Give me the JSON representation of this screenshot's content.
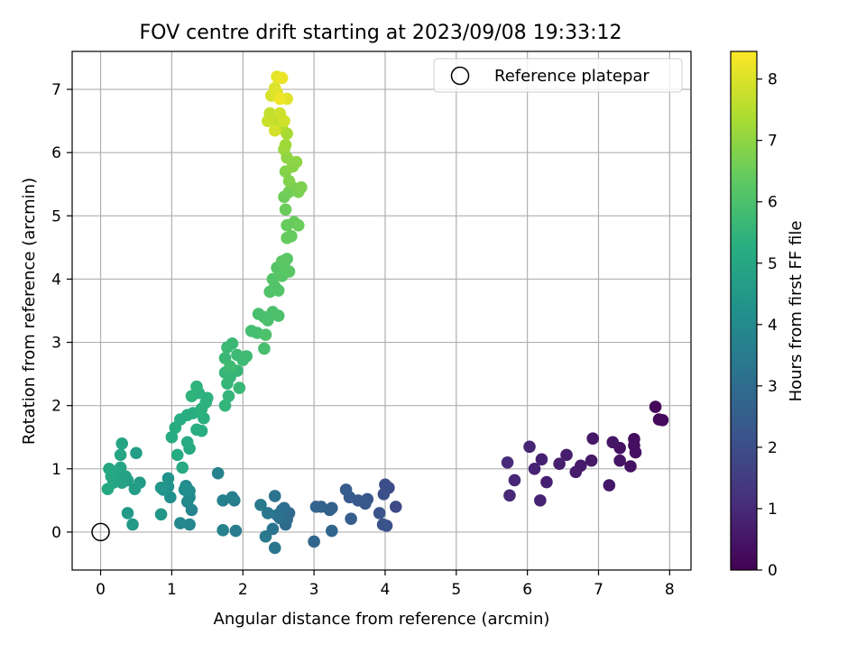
{
  "chart_data": {
    "type": "scatter",
    "title": "FOV centre drift starting at 2023/09/08 19:33:12",
    "xlabel": "Angular distance from reference (arcmin)",
    "ylabel": "Rotation from reference (arcmin)",
    "xlim": [
      -0.4,
      8.3
    ],
    "ylim": [
      -0.6,
      7.6
    ],
    "xticks": [
      0,
      1,
      2,
      3,
      4,
      5,
      6,
      7,
      8
    ],
    "yticks": [
      0,
      1,
      2,
      3,
      4,
      5,
      6,
      7
    ],
    "grid": true,
    "legend": {
      "position": "top-right",
      "entries": [
        "Reference platepar"
      ]
    },
    "reference_point": {
      "x": 0,
      "y": 0
    },
    "colorbar": {
      "label": "Hours from first FF file",
      "min": 0,
      "max": 8.45,
      "ticks": [
        0,
        1,
        2,
        3,
        4,
        5,
        6,
        7,
        8
      ],
      "colormap": "viridis"
    },
    "points": [
      {
        "x": 7.8,
        "y": 1.98,
        "c": 0.15
      },
      {
        "x": 7.85,
        "y": 1.78,
        "c": 0.2
      },
      {
        "x": 7.9,
        "y": 1.77,
        "c": 0.22
      },
      {
        "x": 7.5,
        "y": 1.47,
        "c": 0.3
      },
      {
        "x": 7.5,
        "y": 1.37,
        "c": 0.32
      },
      {
        "x": 7.52,
        "y": 1.26,
        "c": 0.35
      },
      {
        "x": 7.45,
        "y": 1.04,
        "c": 0.38
      },
      {
        "x": 7.3,
        "y": 1.33,
        "c": 0.42
      },
      {
        "x": 7.3,
        "y": 1.13,
        "c": 0.45
      },
      {
        "x": 7.2,
        "y": 1.42,
        "c": 0.48
      },
      {
        "x": 7.15,
        "y": 0.74,
        "c": 0.52
      },
      {
        "x": 6.92,
        "y": 1.48,
        "c": 0.55
      },
      {
        "x": 6.9,
        "y": 1.13,
        "c": 0.58
      },
      {
        "x": 6.75,
        "y": 1.05,
        "c": 0.62
      },
      {
        "x": 6.68,
        "y": 0.95,
        "c": 0.65
      },
      {
        "x": 6.55,
        "y": 1.22,
        "c": 0.68
      },
      {
        "x": 6.45,
        "y": 1.08,
        "c": 0.72
      },
      {
        "x": 6.27,
        "y": 0.79,
        "c": 0.75
      },
      {
        "x": 6.2,
        "y": 1.15,
        "c": 0.78
      },
      {
        "x": 6.18,
        "y": 0.5,
        "c": 0.82
      },
      {
        "x": 6.1,
        "y": 1.0,
        "c": 0.85
      },
      {
        "x": 6.03,
        "y": 1.35,
        "c": 0.88
      },
      {
        "x": 5.82,
        "y": 0.82,
        "c": 0.92
      },
      {
        "x": 5.75,
        "y": 0.58,
        "c": 0.95
      },
      {
        "x": 5.72,
        "y": 1.1,
        "c": 0.98
      },
      {
        "x": 4.15,
        "y": 0.4,
        "c": 1.9
      },
      {
        "x": 4.05,
        "y": 0.7,
        "c": 1.95
      },
      {
        "x": 4.0,
        "y": 0.75,
        "c": 2.0
      },
      {
        "x": 3.98,
        "y": 0.6,
        "c": 2.05
      },
      {
        "x": 4.02,
        "y": 0.1,
        "c": 2.1
      },
      {
        "x": 3.97,
        "y": 0.12,
        "c": 2.15
      },
      {
        "x": 3.92,
        "y": 0.3,
        "c": 2.2
      },
      {
        "x": 3.75,
        "y": 0.52,
        "c": 2.25
      },
      {
        "x": 3.72,
        "y": 0.45,
        "c": 2.3
      },
      {
        "x": 3.62,
        "y": 0.5,
        "c": 2.35
      },
      {
        "x": 3.5,
        "y": 0.55,
        "c": 2.4
      },
      {
        "x": 3.45,
        "y": 0.67,
        "c": 2.45
      },
      {
        "x": 3.52,
        "y": 0.21,
        "c": 2.5
      },
      {
        "x": 3.25,
        "y": 0.38,
        "c": 2.55
      },
      {
        "x": 3.22,
        "y": 0.35,
        "c": 2.6
      },
      {
        "x": 3.1,
        "y": 0.4,
        "c": 2.65
      },
      {
        "x": 3.03,
        "y": 0.4,
        "c": 2.7
      },
      {
        "x": 3.25,
        "y": 0.02,
        "c": 2.75
      },
      {
        "x": 3.0,
        "y": -0.15,
        "c": 2.8
      },
      {
        "x": 2.65,
        "y": 0.3,
        "c": 2.85
      },
      {
        "x": 2.62,
        "y": 0.2,
        "c": 2.9
      },
      {
        "x": 2.6,
        "y": 0.12,
        "c": 2.95
      },
      {
        "x": 2.58,
        "y": 0.38,
        "c": 3.0
      },
      {
        "x": 2.55,
        "y": 0.35,
        "c": 3.05
      },
      {
        "x": 2.52,
        "y": 0.22,
        "c": 3.1
      },
      {
        "x": 2.48,
        "y": 0.27,
        "c": 3.15
      },
      {
        "x": 2.45,
        "y": 0.57,
        "c": 3.2
      },
      {
        "x": 2.42,
        "y": 0.05,
        "c": 3.25
      },
      {
        "x": 2.45,
        "y": -0.25,
        "c": 3.3
      },
      {
        "x": 2.35,
        "y": 0.3,
        "c": 3.35
      },
      {
        "x": 2.32,
        "y": -0.07,
        "c": 3.4
      },
      {
        "x": 2.25,
        "y": 0.43,
        "c": 3.45
      },
      {
        "x": 1.9,
        "y": 0.02,
        "c": 3.5
      },
      {
        "x": 1.88,
        "y": 0.5,
        "c": 3.55
      },
      {
        "x": 1.85,
        "y": 0.55,
        "c": 3.6
      },
      {
        "x": 1.72,
        "y": 0.5,
        "c": 3.65
      },
      {
        "x": 1.72,
        "y": 0.03,
        "c": 3.7
      },
      {
        "x": 1.65,
        "y": 0.93,
        "c": 3.75
      },
      {
        "x": 1.28,
        "y": 0.35,
        "c": 3.8
      },
      {
        "x": 1.25,
        "y": 0.12,
        "c": 3.85
      },
      {
        "x": 1.22,
        "y": 0.48,
        "c": 3.9
      },
      {
        "x": 1.12,
        "y": 0.14,
        "c": 3.95
      },
      {
        "x": 1.25,
        "y": 0.55,
        "c": 4.0
      },
      {
        "x": 1.2,
        "y": 0.73,
        "c": 4.05
      },
      {
        "x": 1.25,
        "y": 0.65,
        "c": 4.1
      },
      {
        "x": 1.18,
        "y": 0.67,
        "c": 4.15
      },
      {
        "x": 0.98,
        "y": 0.55,
        "c": 4.2
      },
      {
        "x": 0.95,
        "y": 0.72,
        "c": 4.25
      },
      {
        "x": 0.95,
        "y": 0.85,
        "c": 4.3
      },
      {
        "x": 0.88,
        "y": 0.67,
        "c": 4.35
      },
      {
        "x": 0.85,
        "y": 0.7,
        "c": 4.4
      },
      {
        "x": 0.85,
        "y": 0.28,
        "c": 4.45
      },
      {
        "x": 0.45,
        "y": 0.12,
        "c": 4.5
      },
      {
        "x": 0.38,
        "y": 0.3,
        "c": 4.55
      },
      {
        "x": 0.55,
        "y": 0.78,
        "c": 4.6
      },
      {
        "x": 0.48,
        "y": 0.68,
        "c": 4.65
      },
      {
        "x": 0.5,
        "y": 1.25,
        "c": 4.7
      },
      {
        "x": 0.38,
        "y": 0.82,
        "c": 4.75
      },
      {
        "x": 0.35,
        "y": 0.88,
        "c": 4.8
      },
      {
        "x": 0.3,
        "y": 0.78,
        "c": 4.82
      },
      {
        "x": 0.28,
        "y": 0.92,
        "c": 4.85
      },
      {
        "x": 0.28,
        "y": 1.02,
        "c": 4.88
      },
      {
        "x": 0.3,
        "y": 1.4,
        "c": 4.9
      },
      {
        "x": 0.28,
        "y": 1.22,
        "c": 4.92
      },
      {
        "x": 0.22,
        "y": 0.95,
        "c": 4.95
      },
      {
        "x": 0.18,
        "y": 0.78,
        "c": 4.98
      },
      {
        "x": 0.15,
        "y": 0.88,
        "c": 5.0
      },
      {
        "x": 0.12,
        "y": 1.0,
        "c": 5.02
      },
      {
        "x": 0.1,
        "y": 0.68,
        "c": 5.05
      },
      {
        "x": 1.15,
        "y": 1.02,
        "c": 5.1
      },
      {
        "x": 1.25,
        "y": 1.32,
        "c": 5.12
      },
      {
        "x": 1.22,
        "y": 1.42,
        "c": 5.14
      },
      {
        "x": 1.08,
        "y": 1.22,
        "c": 5.16
      },
      {
        "x": 1.0,
        "y": 1.5,
        "c": 5.18
      },
      {
        "x": 1.05,
        "y": 1.65,
        "c": 5.2
      },
      {
        "x": 1.12,
        "y": 1.78,
        "c": 5.22
      },
      {
        "x": 1.22,
        "y": 1.85,
        "c": 5.24
      },
      {
        "x": 1.3,
        "y": 1.88,
        "c": 5.26
      },
      {
        "x": 1.35,
        "y": 1.62,
        "c": 5.28
      },
      {
        "x": 1.42,
        "y": 1.6,
        "c": 5.3
      },
      {
        "x": 1.45,
        "y": 1.8,
        "c": 5.32
      },
      {
        "x": 1.42,
        "y": 1.95,
        "c": 5.34
      },
      {
        "x": 1.48,
        "y": 2.05,
        "c": 5.36
      },
      {
        "x": 1.5,
        "y": 2.12,
        "c": 5.38
      },
      {
        "x": 1.38,
        "y": 2.2,
        "c": 5.4
      },
      {
        "x": 1.35,
        "y": 2.3,
        "c": 5.42
      },
      {
        "x": 1.28,
        "y": 2.15,
        "c": 5.44
      },
      {
        "x": 1.75,
        "y": 2.0,
        "c": 5.5
      },
      {
        "x": 1.8,
        "y": 2.15,
        "c": 5.52
      },
      {
        "x": 1.78,
        "y": 2.35,
        "c": 5.54
      },
      {
        "x": 1.82,
        "y": 2.45,
        "c": 5.56
      },
      {
        "x": 1.75,
        "y": 2.52,
        "c": 5.58
      },
      {
        "x": 1.92,
        "y": 2.55,
        "c": 5.6
      },
      {
        "x": 1.95,
        "y": 2.28,
        "c": 5.62
      },
      {
        "x": 1.75,
        "y": 2.75,
        "c": 5.64
      },
      {
        "x": 1.78,
        "y": 2.92,
        "c": 5.66
      },
      {
        "x": 1.85,
        "y": 2.98,
        "c": 5.68
      },
      {
        "x": 1.92,
        "y": 2.8,
        "c": 5.7
      },
      {
        "x": 2.0,
        "y": 2.72,
        "c": 5.72
      },
      {
        "x": 2.05,
        "y": 2.78,
        "c": 5.74
      },
      {
        "x": 1.82,
        "y": 2.62,
        "c": 5.76
      },
      {
        "x": 2.12,
        "y": 3.18,
        "c": 5.85
      },
      {
        "x": 2.2,
        "y": 3.15,
        "c": 5.88
      },
      {
        "x": 2.3,
        "y": 2.9,
        "c": 5.9
      },
      {
        "x": 2.22,
        "y": 3.45,
        "c": 5.92
      },
      {
        "x": 2.3,
        "y": 3.4,
        "c": 5.94
      },
      {
        "x": 2.35,
        "y": 3.35,
        "c": 5.96
      },
      {
        "x": 2.42,
        "y": 3.48,
        "c": 5.98
      },
      {
        "x": 2.5,
        "y": 3.42,
        "c": 6.0
      },
      {
        "x": 2.32,
        "y": 3.12,
        "c": 6.02
      },
      {
        "x": 2.38,
        "y": 3.8,
        "c": 6.08
      },
      {
        "x": 2.45,
        "y": 3.88,
        "c": 6.1
      },
      {
        "x": 2.5,
        "y": 3.82,
        "c": 6.12
      },
      {
        "x": 2.42,
        "y": 4.0,
        "c": 6.14
      },
      {
        "x": 2.48,
        "y": 4.18,
        "c": 6.16
      },
      {
        "x": 2.55,
        "y": 4.05,
        "c": 6.18
      },
      {
        "x": 2.58,
        "y": 4.2,
        "c": 6.2
      },
      {
        "x": 2.62,
        "y": 4.32,
        "c": 6.22
      },
      {
        "x": 2.65,
        "y": 4.12,
        "c": 6.24
      },
      {
        "x": 2.55,
        "y": 4.28,
        "c": 6.26
      },
      {
        "x": 2.62,
        "y": 4.65,
        "c": 6.4
      },
      {
        "x": 2.68,
        "y": 4.68,
        "c": 6.42
      },
      {
        "x": 2.62,
        "y": 4.85,
        "c": 6.44
      },
      {
        "x": 2.72,
        "y": 4.9,
        "c": 6.46
      },
      {
        "x": 2.78,
        "y": 4.85,
        "c": 6.48
      },
      {
        "x": 2.6,
        "y": 5.1,
        "c": 6.5
      },
      {
        "x": 2.58,
        "y": 5.3,
        "c": 6.55
      },
      {
        "x": 2.65,
        "y": 5.38,
        "c": 6.6
      },
      {
        "x": 2.7,
        "y": 5.45,
        "c": 6.65
      },
      {
        "x": 2.78,
        "y": 5.38,
        "c": 6.7
      },
      {
        "x": 2.82,
        "y": 5.45,
        "c": 6.75
      },
      {
        "x": 2.65,
        "y": 5.55,
        "c": 6.8
      },
      {
        "x": 2.6,
        "y": 5.7,
        "c": 6.85
      },
      {
        "x": 2.7,
        "y": 5.78,
        "c": 6.9
      },
      {
        "x": 2.75,
        "y": 5.85,
        "c": 6.95
      },
      {
        "x": 2.62,
        "y": 5.92,
        "c": 7.0
      },
      {
        "x": 2.58,
        "y": 6.05,
        "c": 7.1
      },
      {
        "x": 2.6,
        "y": 6.12,
        "c": 7.2
      },
      {
        "x": 2.62,
        "y": 6.3,
        "c": 7.3
      },
      {
        "x": 2.55,
        "y": 6.38,
        "c": 7.4
      },
      {
        "x": 2.5,
        "y": 6.42,
        "c": 7.5
      },
      {
        "x": 2.48,
        "y": 6.5,
        "c": 7.6
      },
      {
        "x": 2.42,
        "y": 6.55,
        "c": 7.65
      },
      {
        "x": 2.38,
        "y": 6.62,
        "c": 7.7
      },
      {
        "x": 2.35,
        "y": 6.5,
        "c": 7.75
      },
      {
        "x": 2.52,
        "y": 6.62,
        "c": 7.8
      },
      {
        "x": 2.58,
        "y": 6.5,
        "c": 7.85
      },
      {
        "x": 2.45,
        "y": 6.35,
        "c": 7.9
      },
      {
        "x": 2.4,
        "y": 6.9,
        "c": 7.95
      },
      {
        "x": 2.45,
        "y": 7.02,
        "c": 8.0
      },
      {
        "x": 2.48,
        "y": 6.95,
        "c": 8.05
      },
      {
        "x": 2.62,
        "y": 6.85,
        "c": 8.1
      },
      {
        "x": 2.48,
        "y": 7.2,
        "c": 8.15
      },
      {
        "x": 2.55,
        "y": 7.18,
        "c": 8.2
      },
      {
        "x": 2.52,
        "y": 6.85,
        "c": 8.25
      }
    ]
  }
}
